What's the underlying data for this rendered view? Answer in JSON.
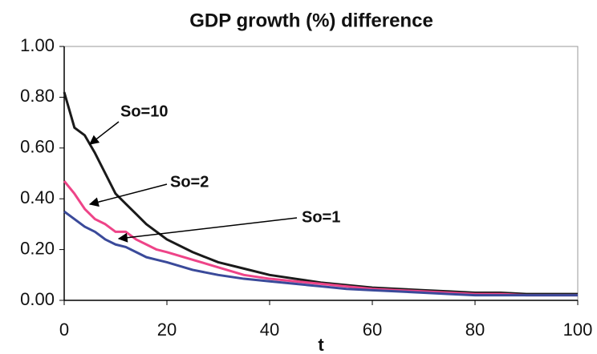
{
  "chart_data": {
    "type": "line",
    "title": "GDP growth (%) difference",
    "x_label": "t",
    "x": [
      0,
      2,
      4,
      6,
      8,
      10,
      12,
      14,
      16,
      18,
      20,
      25,
      30,
      35,
      40,
      45,
      50,
      55,
      60,
      65,
      70,
      75,
      80,
      85,
      90,
      95,
      100
    ],
    "series": [
      {
        "name": "So=10",
        "color": "#1a1a1a",
        "values": [
          0.82,
          0.68,
          0.65,
          0.58,
          0.5,
          0.42,
          0.38,
          0.34,
          0.3,
          0.27,
          0.24,
          0.19,
          0.15,
          0.125,
          0.1,
          0.085,
          0.07,
          0.06,
          0.05,
          0.045,
          0.04,
          0.035,
          0.03,
          0.03,
          0.025,
          0.025,
          0.025
        ]
      },
      {
        "name": "So=2",
        "color": "#ee4488",
        "values": [
          0.47,
          0.42,
          0.36,
          0.32,
          0.3,
          0.27,
          0.27,
          0.24,
          0.22,
          0.2,
          0.19,
          0.16,
          0.13,
          0.1,
          0.085,
          0.075,
          0.065,
          0.055,
          0.045,
          0.04,
          0.035,
          0.03,
          0.025,
          0.025,
          0.02,
          0.02,
          0.02
        ]
      },
      {
        "name": "So=1",
        "color": "#3a4a9a",
        "values": [
          0.35,
          0.32,
          0.29,
          0.27,
          0.24,
          0.22,
          0.21,
          0.19,
          0.17,
          0.16,
          0.15,
          0.12,
          0.1,
          0.085,
          0.075,
          0.065,
          0.055,
          0.045,
          0.04,
          0.035,
          0.03,
          0.025,
          0.02,
          0.02,
          0.02,
          0.02,
          0.02
        ]
      }
    ],
    "xlim": [
      0,
      100
    ],
    "xticks": [
      0,
      20,
      40,
      60,
      80,
      100
    ],
    "ylim": [
      0,
      1
    ],
    "yticks": [
      {
        "value": 0,
        "label": "0.00"
      },
      {
        "value": 0.2,
        "label": "0.20"
      },
      {
        "value": 0.4,
        "label": "0.40"
      },
      {
        "value": 0.6,
        "label": "0.60"
      },
      {
        "value": 0.8,
        "label": "0.80"
      },
      {
        "value": 1,
        "label": "1.00"
      }
    ],
    "grid": false
  }
}
